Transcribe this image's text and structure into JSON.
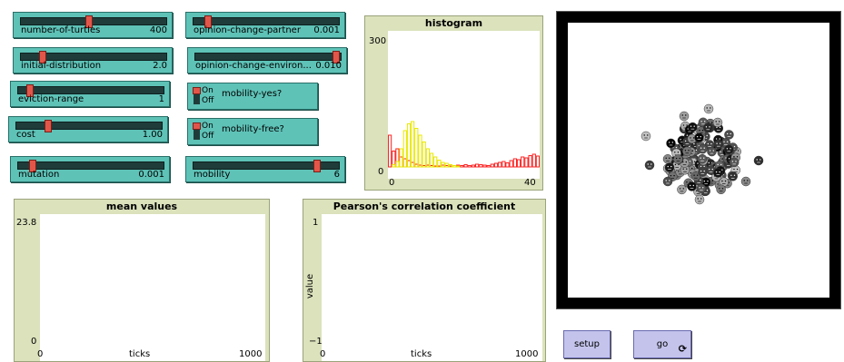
{
  "sliders": [
    {
      "id": "number-of-turtles",
      "label": "number-of-turtles",
      "value": "400",
      "pos": 0.47
    },
    {
      "id": "initial-distribution",
      "label": "initial-distribution",
      "value": "2.0",
      "pos": 0.15
    },
    {
      "id": "eviction-range",
      "label": "eviction-range",
      "value": "1",
      "pos": 0.08
    },
    {
      "id": "cost",
      "label": "cost",
      "value": "1.00",
      "pos": 0.22
    },
    {
      "id": "mutation",
      "label": "mutation",
      "value": "0.001",
      "pos": 0.1
    },
    {
      "id": "opinion-change-partner",
      "label": "opinion-change-partner",
      "value": "0.001",
      "pos": 0.1
    },
    {
      "id": "opinion-change-environment",
      "label": "opinion-change-environ...",
      "value": "0.010",
      "pos": 0.97
    },
    {
      "id": "mobility",
      "label": "mobility",
      "value": "6",
      "pos": 0.85
    }
  ],
  "switches": [
    {
      "id": "mobility-yes",
      "label": "mobility-yes?",
      "on": "On",
      "off": "Off"
    },
    {
      "id": "mobility-free",
      "label": "mobility-free?",
      "on": "On",
      "off": "Off"
    }
  ],
  "histogram": {
    "title": "histogram",
    "ymax": "300",
    "ymin": "0",
    "xmin": "0",
    "xmax": "40",
    "chart_data": {
      "type": "bar",
      "series": [
        {
          "color": "#ff2020",
          "values": [
            70,
            35,
            40,
            22,
            18,
            14,
            10,
            6,
            4,
            3,
            4,
            3,
            2,
            2,
            4,
            3,
            2,
            3,
            4,
            3,
            5,
            3,
            4,
            6,
            5,
            4,
            3,
            6,
            8,
            10,
            12,
            9,
            14,
            18,
            16,
            22,
            20,
            25,
            28,
            24
          ]
        },
        {
          "color": "#e8e800",
          "values": [
            0,
            5,
            12,
            40,
            80,
            95,
            100,
            85,
            70,
            55,
            40,
            30,
            22,
            15,
            10,
            8,
            5,
            3,
            2,
            0,
            0,
            0,
            0,
            0,
            0,
            0,
            0,
            0,
            0,
            0,
            0,
            0,
            0,
            0,
            0,
            0,
            0,
            0,
            0,
            0
          ]
        }
      ]
    }
  },
  "mean_plot": {
    "title": "mean values",
    "ymax": "23.8",
    "ymin": "0",
    "xmin": "0",
    "xmax": "1000",
    "xlabel": "ticks"
  },
  "pearson_plot": {
    "title": "Pearson's correlation coefficient",
    "ymax": "1",
    "ymin": "−1",
    "xmin": "0",
    "xmax": "1000",
    "xlabel": "ticks",
    "ylabel": "value"
  },
  "buttons": {
    "setup": "setup",
    "go": "go",
    "go_icon": "⟳"
  },
  "view": {
    "turtles_icon": "face-turtle"
  }
}
